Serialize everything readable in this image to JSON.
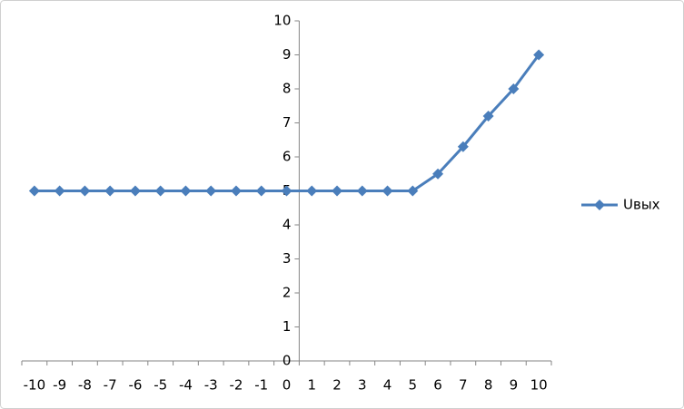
{
  "chart_data": {
    "type": "line",
    "categories": [
      "-10",
      "-9",
      "-8",
      "-7",
      "-6",
      "-5",
      "-4",
      "-3",
      "-2",
      "-1",
      "0",
      "1",
      "2",
      "3",
      "4",
      "5",
      "6",
      "7",
      "8",
      "9",
      "10"
    ],
    "series": [
      {
        "name": "Uвых",
        "color": "#4a7ebb",
        "values": [
          5,
          5,
          5,
          5,
          5,
          5,
          5,
          5,
          5,
          5,
          5,
          5,
          5,
          5,
          5,
          5,
          5.5,
          6.3,
          7.2,
          8,
          9
        ]
      }
    ],
    "ylim": [
      0,
      10
    ],
    "yticks": [
      0,
      1,
      2,
      3,
      4,
      5,
      6,
      7,
      8,
      9,
      10
    ],
    "legend": "right"
  }
}
